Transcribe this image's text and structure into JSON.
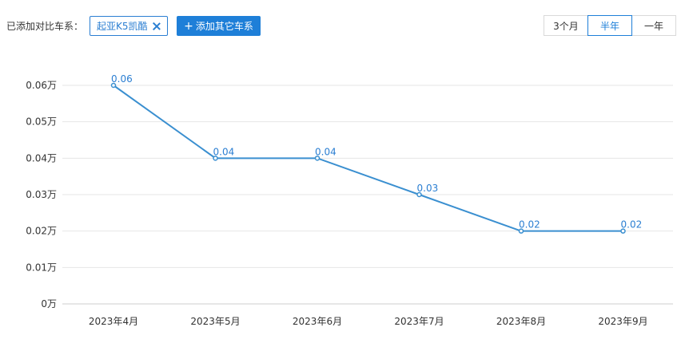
{
  "toolbar": {
    "added_label": "已添加对比车系：",
    "car_tag": "起亚K5凯酷",
    "add_button": "添加其它车系",
    "add_icon": "plus-icon",
    "close_icon": "close-icon"
  },
  "range": {
    "options": [
      "3个月",
      "半年",
      "一年"
    ],
    "selected": "半年"
  },
  "colors": {
    "accent": "#1e7fd8",
    "line": "#3a8fd0",
    "grid": "#e6e6e6"
  },
  "chart_data": {
    "type": "line",
    "categories": [
      "2023年4月",
      "2023年5月",
      "2023年6月",
      "2023年7月",
      "2023年8月",
      "2023年9月"
    ],
    "series": [
      {
        "values": [
          0.06,
          0.04,
          0.04,
          0.03,
          0.02,
          0.02
        ]
      }
    ],
    "data_labels": [
      "0.06",
      "0.04",
      "0.04",
      "0.03",
      "0.02",
      "0.02"
    ],
    "y_ticks": [
      0,
      0.01,
      0.02,
      0.03,
      0.04,
      0.05,
      0.06
    ],
    "y_tick_labels": [
      "0万",
      "0.01万",
      "0.02万",
      "0.03万",
      "0.04万",
      "0.05万",
      "0.06万"
    ],
    "ylim": [
      0,
      0.06
    ],
    "grid": true,
    "title": "",
    "xlabel": "",
    "ylabel": ""
  }
}
